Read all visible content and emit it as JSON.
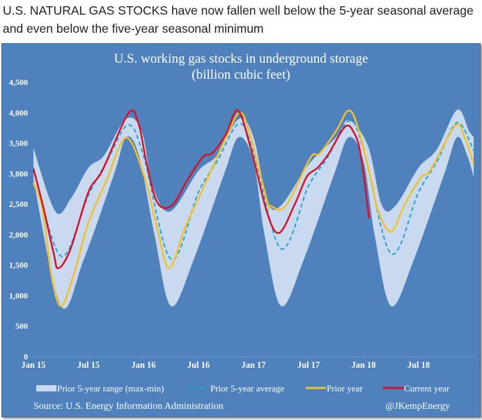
{
  "headline": "U.S. NATURAL GAS STOCKS have now fallen well below the 5-year seasonal average and even below the five-year seasonal minimum",
  "chart_data": {
    "type": "line",
    "title": "U.S. working gas stocks in underground storage",
    "subtitle": "(billion cubic feet)",
    "xlabel": "",
    "ylabel": "",
    "x_unit": "months since Jan 2015",
    "xlim": [
      0,
      48
    ],
    "ylim": [
      0,
      4500
    ],
    "yticks": [
      {
        "v": 0,
        "label": "0"
      },
      {
        "v": 500,
        "label": "500"
      },
      {
        "v": 1000,
        "label": "1,000"
      },
      {
        "v": 1500,
        "label": "1,500"
      },
      {
        "v": 2000,
        "label": "2,000"
      },
      {
        "v": 2500,
        "label": "2,500"
      },
      {
        "v": 3000,
        "label": "3,000"
      },
      {
        "v": 3500,
        "label": "3,500"
      },
      {
        "v": 4000,
        "label": "4,000"
      },
      {
        "v": 4500,
        "label": "4,500"
      }
    ],
    "xticks": [
      {
        "m": 0,
        "label": "Jan 15"
      },
      {
        "m": 6,
        "label": "Jul 15"
      },
      {
        "m": 12,
        "label": "Jan 16"
      },
      {
        "m": 18,
        "label": "Jul 16"
      },
      {
        "m": 24,
        "label": "Jan 17"
      },
      {
        "m": 30,
        "label": "Jul 17"
      },
      {
        "m": 36,
        "label": "Jan 18"
      },
      {
        "m": 42,
        "label": "Jul 18"
      }
    ],
    "grid": false,
    "legend_position": "bottom",
    "band": {
      "name": "Prior 5-year range (max-min)",
      "color": "#c9daf0",
      "upper": [
        [
          0,
          3420
        ],
        [
          2.4,
          2380
        ],
        [
          4.1,
          2600
        ],
        [
          6,
          3100
        ],
        [
          7.7,
          3300
        ],
        [
          10.1,
          3900
        ],
        [
          11.8,
          3700
        ],
        [
          13,
          2800
        ],
        [
          14.9,
          2380
        ],
        [
          18,
          3050
        ],
        [
          20,
          3300
        ],
        [
          22.4,
          3900
        ],
        [
          24,
          3600
        ],
        [
          25.5,
          2550
        ],
        [
          27,
          2480
        ],
        [
          30,
          3150
        ],
        [
          33,
          3600
        ],
        [
          34.4,
          3880
        ],
        [
          36.5,
          3450
        ],
        [
          38,
          2480
        ],
        [
          39.5,
          2480
        ],
        [
          42,
          3100
        ],
        [
          44,
          3400
        ],
        [
          46.2,
          4050
        ],
        [
          47.5,
          3700
        ],
        [
          48,
          3600
        ]
      ],
      "lower": [
        [
          0,
          2900
        ],
        [
          3,
          830
        ],
        [
          5.5,
          1600
        ],
        [
          8.8,
          3000
        ],
        [
          10.1,
          3600
        ],
        [
          11.5,
          3300
        ],
        [
          13.2,
          2000
        ],
        [
          15,
          830
        ],
        [
          17.5,
          1600
        ],
        [
          20.8,
          3000
        ],
        [
          22.4,
          3600
        ],
        [
          24,
          3200
        ],
        [
          25.2,
          2000
        ],
        [
          27,
          830
        ],
        [
          29.5,
          1600
        ],
        [
          32.8,
          3000
        ],
        [
          34.4,
          3600
        ],
        [
          36,
          3200
        ],
        [
          37.2,
          2000
        ],
        [
          39,
          830
        ],
        [
          41.5,
          1600
        ],
        [
          44.8,
          3000
        ],
        [
          46.2,
          3600
        ],
        [
          47.3,
          3300
        ],
        [
          48,
          2950
        ]
      ]
    },
    "series": [
      {
        "name": "Prior 5-year average",
        "color": "#1fa3d6",
        "dash": true,
        "points": [
          [
            0,
            3100
          ],
          [
            3,
            1650
          ],
          [
            6,
            2650
          ],
          [
            8,
            3200
          ],
          [
            10.3,
            3800
          ],
          [
            12,
            3300
          ],
          [
            15,
            1600
          ],
          [
            18,
            2700
          ],
          [
            20,
            3200
          ],
          [
            22.4,
            3820
          ],
          [
            24,
            3350
          ],
          [
            27,
            1770
          ],
          [
            30,
            2800
          ],
          [
            32,
            3250
          ],
          [
            34.4,
            3870
          ],
          [
            36,
            3400
          ],
          [
            39,
            1690
          ],
          [
            42,
            2700
          ],
          [
            44,
            3200
          ],
          [
            46.2,
            3840
          ],
          [
            48,
            3380
          ]
        ]
      },
      {
        "name": "Prior year",
        "color": "#f2c02a",
        "dash": false,
        "points": [
          [
            0,
            2850
          ],
          [
            1,
            2400
          ],
          [
            2,
            1300
          ],
          [
            3.05,
            830
          ],
          [
            4.5,
            1400
          ],
          [
            6,
            2200
          ],
          [
            8,
            2900
          ],
          [
            10.1,
            3590
          ],
          [
            12.1,
            2950
          ],
          [
            13.5,
            2100
          ],
          [
            14.8,
            1450
          ],
          [
            16.5,
            2100
          ],
          [
            18.5,
            2760
          ],
          [
            21.2,
            3660
          ],
          [
            22.5,
            4000
          ],
          [
            23.5,
            3700
          ],
          [
            25.5,
            2540
          ],
          [
            25.9,
            2470
          ],
          [
            27.5,
            2470
          ],
          [
            30.2,
            3260
          ],
          [
            31.2,
            3330
          ],
          [
            33,
            3700
          ],
          [
            34.4,
            4040
          ],
          [
            35.5,
            3700
          ],
          [
            36.9,
            2840
          ],
          [
            37.6,
            2380
          ],
          [
            39,
            2050
          ],
          [
            40.5,
            2500
          ],
          [
            42.3,
            2950
          ],
          [
            43.3,
            3060
          ],
          [
            46,
            3790
          ],
          [
            47,
            3610
          ],
          [
            48,
            3160
          ]
        ]
      },
      {
        "name": "Current year",
        "color": "#d7112b",
        "dash": false,
        "points": [
          [
            0,
            3080
          ],
          [
            1,
            2500
          ],
          [
            2.2,
            1700
          ],
          [
            2.7,
            1450
          ],
          [
            4,
            1750
          ],
          [
            6,
            2700
          ],
          [
            7.5,
            3050
          ],
          [
            10.4,
            4000
          ],
          [
            11.5,
            3800
          ],
          [
            12.3,
            3200
          ],
          [
            13.5,
            2530
          ],
          [
            15.1,
            2480
          ],
          [
            16.8,
            2900
          ],
          [
            18.5,
            3280
          ],
          [
            19.5,
            3340
          ],
          [
            21,
            3650
          ],
          [
            22.3,
            4040
          ],
          [
            23.8,
            3360
          ],
          [
            25.5,
            2350
          ],
          [
            26.8,
            2030
          ],
          [
            28.5,
            2500
          ],
          [
            29.8,
            2950
          ],
          [
            31,
            3100
          ],
          [
            32.2,
            3330
          ],
          [
            34,
            3775
          ],
          [
            35,
            3660
          ],
          [
            35.7,
            3300
          ],
          [
            36.6,
            2270
          ]
        ]
      }
    ],
    "source": "Source: U.S. Energy Information Administration",
    "credit": "@JKempEnergy"
  }
}
